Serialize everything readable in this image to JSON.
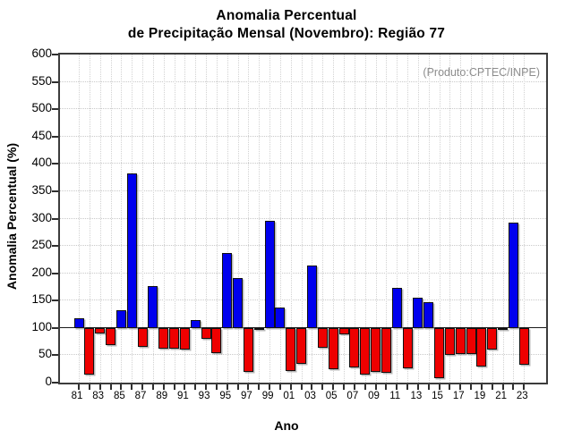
{
  "title": {
    "line1": "Anomalia Percentual",
    "line2": "de Precipitação Mensal (Novembro): Região 77"
  },
  "watermark": "(Produto:CPTEC/INPE)",
  "chart_data": {
    "type": "bar",
    "title": "Anomalia Percentual de Precipitação Mensal (Novembro): Região 77",
    "xlabel": "Ano",
    "ylabel": "Anomalia Percentual (%)",
    "ylim": [
      0,
      600
    ],
    "ytick_step": 50,
    "y_tick_labels": [
      "0",
      "50",
      "100",
      "150",
      "200",
      "250",
      "300",
      "350",
      "400",
      "450",
      "500",
      "550",
      "600"
    ],
    "baseline": 100,
    "grid": "dotted",
    "legend": "none",
    "colors": {
      "above_baseline": "#0000ee",
      "below_baseline": "#ee0000",
      "grid": "#c9c9c9",
      "frame": "#3c3c3c",
      "watermark": "#8d8d8d"
    },
    "x": [
      1981,
      1982,
      1983,
      1984,
      1985,
      1986,
      1987,
      1988,
      1989,
      1990,
      1991,
      1992,
      1993,
      1994,
      1995,
      1996,
      1997,
      1998,
      1999,
      2000,
      2001,
      2002,
      2003,
      2004,
      2005,
      2006,
      2007,
      2008,
      2009,
      2010,
      2011,
      2012,
      2013,
      2014,
      2015,
      2016,
      2017,
      2018,
      2019,
      2020,
      2021,
      2022,
      2023
    ],
    "x_tick_labels": [
      "81",
      "83",
      "85",
      "87",
      "89",
      "91",
      "93",
      "95",
      "97",
      "99",
      "01",
      "03",
      "05",
      "07",
      "09",
      "11",
      "13",
      "15",
      "17",
      "19",
      "21",
      "23"
    ],
    "values": [
      117,
      14,
      90,
      68,
      132,
      383,
      66,
      177,
      62,
      62,
      60,
      114,
      80,
      54,
      237,
      191,
      20,
      97,
      296,
      138,
      22,
      34,
      215,
      63,
      24,
      89,
      28,
      15,
      20,
      18,
      173,
      26,
      155,
      147,
      9,
      50,
      53,
      52,
      30,
      60,
      97,
      292,
      32
    ]
  }
}
